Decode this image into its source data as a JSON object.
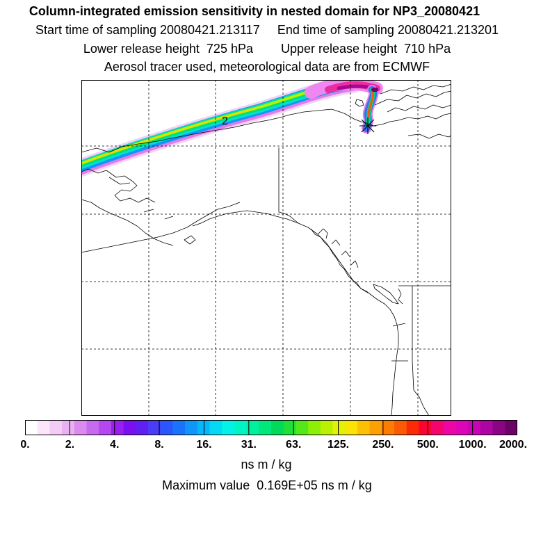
{
  "header": {
    "title": "Column-integrated emission sensitivity in nested domain for NP3_20080421",
    "sampling": "Start time of sampling 20080421.213117     End time of sampling 20080421.213201",
    "release": "Lower release height  725 hPa        Upper release height  710 hPa",
    "tracer": "Aerosol tracer used, meteorological data are from ECMWF"
  },
  "map": {
    "plume_label": "2",
    "release_marker": "asterisk-marker"
  },
  "colorbar": {
    "ticks": [
      "0.",
      "2.",
      "4.",
      "8.",
      "16.",
      "31.",
      "63.",
      "125.",
      "250.",
      "500.",
      "1000.",
      "2000."
    ],
    "colors": [
      "#ffffff",
      "#fbe6fb",
      "#f3ccf5",
      "#e9b1f1",
      "#db8af0",
      "#c66aef",
      "#b447ef",
      "#9a1ef0",
      "#7a10f0",
      "#6020f2",
      "#4a3df6",
      "#2a57fb",
      "#1a74fb",
      "#1096fb",
      "#07b6fb",
      "#05d8f5",
      "#03f2e8",
      "#00f4c4",
      "#00f09f",
      "#00e77c",
      "#00d95a",
      "#20e038",
      "#55e818",
      "#8cef05",
      "#baf005",
      "#e2f107",
      "#fbe305",
      "#fcc104",
      "#fca003",
      "#fb7d03",
      "#fa5a03",
      "#fa2b05",
      "#fa0530",
      "#f4056e",
      "#ed05a5",
      "#dc05b8",
      "#c805b5",
      "#ac05a2",
      "#8a0584",
      "#6a0365"
    ],
    "units": "ns m / kg",
    "max_value": "Maximum value  0.169E+05 ns m / kg"
  }
}
